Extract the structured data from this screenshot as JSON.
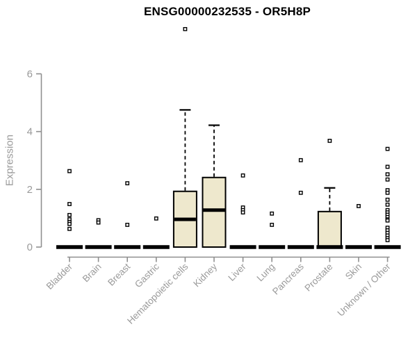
{
  "colors": {
    "box_fill": "#EEE8CD",
    "box_stroke": "#000000",
    "axis_line": "#8f8f8f",
    "axis_text": "#9a9a9a",
    "title_text": "#000000",
    "background": "#ffffff"
  },
  "chart_data": {
    "type": "boxplot",
    "title": "ENSG00000232535 - OR5H8P",
    "xlabel": "",
    "ylabel": "Expression",
    "ylim": [
      0,
      6
    ],
    "yticks": [
      0,
      2,
      4,
      6
    ],
    "grid": false,
    "legend": "none",
    "categories": [
      "Bladder",
      "Brain",
      "Breast",
      "Gastric",
      "Hematopoietic cells",
      "Kidney",
      "Liver",
      "Lung",
      "Pancreas",
      "Prostate",
      "Skin",
      "Unknown / Other"
    ],
    "series": [
      {
        "category": "Bladder",
        "q1": 0,
        "median": 0,
        "q3": 0,
        "whisker_low": 0,
        "whisker_high": 0,
        "outliers": [
          2.63,
          1.49,
          1.11,
          0.96,
          0.87,
          0.8,
          0.63
        ]
      },
      {
        "category": "Brain",
        "q1": 0,
        "median": 0,
        "q3": 0,
        "whisker_low": 0,
        "whisker_high": 0,
        "outliers": [
          0.93,
          0.85
        ]
      },
      {
        "category": "Breast",
        "q1": 0,
        "median": 0,
        "q3": 0,
        "whisker_low": 0,
        "whisker_high": 0,
        "outliers": [
          2.21,
          0.77
        ]
      },
      {
        "category": "Gastric",
        "q1": 0,
        "median": 0,
        "q3": 0,
        "whisker_low": 0,
        "whisker_high": 0,
        "outliers": [
          0.99
        ]
      },
      {
        "category": "Hematopoietic cells",
        "q1": 0,
        "median": 0.96,
        "q3": 1.93,
        "whisker_low": 0,
        "whisker_high": 4.75,
        "outliers": [
          7.55
        ]
      },
      {
        "category": "Kidney",
        "q1": 0,
        "median": 1.28,
        "q3": 2.41,
        "whisker_low": 0,
        "whisker_high": 4.22,
        "outliers": []
      },
      {
        "category": "Liver",
        "q1": 0,
        "median": 0,
        "q3": 0,
        "whisker_low": 0,
        "whisker_high": 0,
        "outliers": [
          2.48,
          1.37,
          1.28,
          1.2
        ]
      },
      {
        "category": "Lung",
        "q1": 0,
        "median": 0,
        "q3": 0,
        "whisker_low": 0,
        "whisker_high": 0,
        "outliers": [
          1.16,
          0.77
        ]
      },
      {
        "category": "Pancreas",
        "q1": 0,
        "median": 0,
        "q3": 0,
        "whisker_low": 0,
        "whisker_high": 0,
        "outliers": [
          3.01,
          1.88
        ]
      },
      {
        "category": "Prostate",
        "q1": 0,
        "median": 0,
        "q3": 1.23,
        "whisker_low": 0,
        "whisker_high": 2.05,
        "outliers": [
          3.68
        ]
      },
      {
        "category": "Skin",
        "q1": 0,
        "median": 0,
        "q3": 0,
        "whisker_low": 0,
        "whisker_high": 0,
        "outliers": [
          1.42
        ]
      },
      {
        "category": "Unknown / Other",
        "q1": 0,
        "median": 0,
        "q3": 0,
        "whisker_low": 0,
        "whisker_high": 0,
        "outliers": [
          3.4,
          2.78,
          2.52,
          2.34,
          1.97,
          1.88,
          1.64,
          1.47,
          1.28,
          1.2,
          1.12,
          1.04,
          0.96,
          0.92,
          0.67,
          0.58,
          0.49,
          0.4,
          0.31,
          0.24
        ]
      }
    ]
  }
}
